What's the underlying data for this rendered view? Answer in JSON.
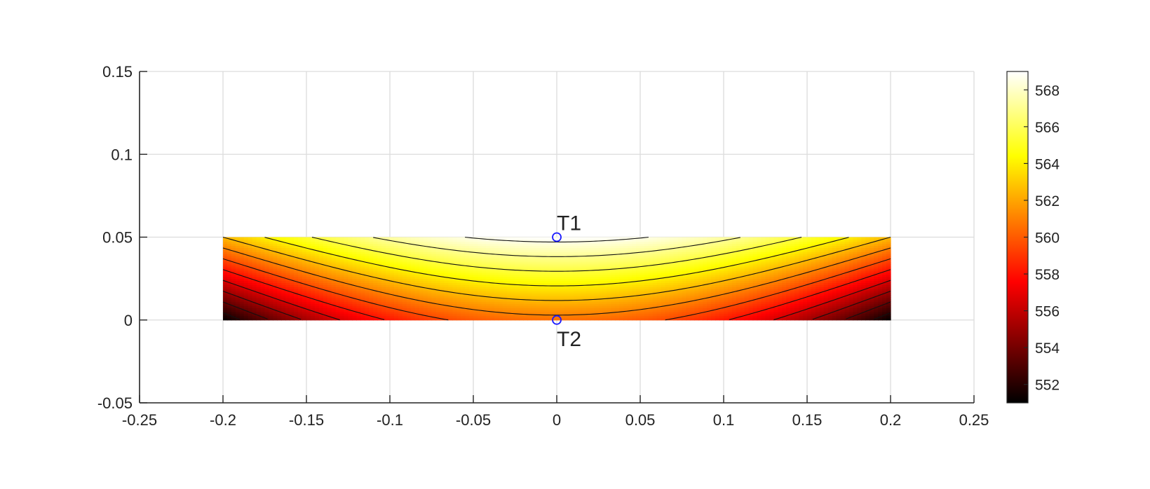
{
  "chart_data": {
    "type": "heatmap",
    "title": "",
    "xlabel": "",
    "ylabel": "",
    "xlim": [
      -0.25,
      0.25
    ],
    "ylim": [
      -0.05,
      0.15
    ],
    "grid": true,
    "x_ticks": [
      "-0.25",
      "-0.2",
      "-0.15",
      "-0.1",
      "-0.05",
      "0",
      "0.05",
      "0.1",
      "0.15",
      "0.2",
      "0.25"
    ],
    "y_ticks": [
      "-0.05",
      "0",
      "0.05",
      "0.1",
      "0.15"
    ],
    "domain": {
      "x": [
        -0.2,
        0.2
      ],
      "y": [
        0,
        0.05
      ]
    },
    "colormap": "hot",
    "colorbar": {
      "placement": "right",
      "range": [
        551,
        569
      ],
      "ticks": [
        "552",
        "554",
        "556",
        "558",
        "560",
        "562",
        "564",
        "566",
        "568"
      ]
    },
    "field_samples": [
      {
        "x": 0,
        "y": 0.05,
        "value": 569
      },
      {
        "x": 0,
        "y": 0,
        "value": 560.5
      },
      {
        "x": -0.2,
        "y": 0.05,
        "value": 562.5
      },
      {
        "x": 0.2,
        "y": 0.05,
        "value": 562.5
      },
      {
        "x": -0.2,
        "y": 0,
        "value": 551
      },
      {
        "x": 0.2,
        "y": 0,
        "value": 551
      }
    ],
    "contour_levels": [
      552,
      553.5,
      555,
      556.5,
      558,
      559.5,
      561,
      562.5,
      564,
      565.5,
      567,
      568.5
    ],
    "points": [
      {
        "name": "T1",
        "x": 0,
        "y": 0.05,
        "label_position": "above"
      },
      {
        "name": "T2",
        "x": 0,
        "y": 0,
        "label_position": "below"
      }
    ],
    "marker_color": "#1a1aff"
  }
}
